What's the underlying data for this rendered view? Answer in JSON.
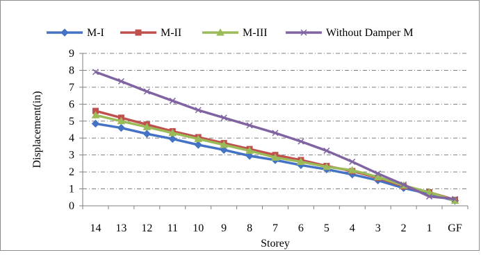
{
  "chart_data": {
    "type": "line",
    "title": "",
    "xlabel": "Storey",
    "ylabel": "Displacement(in)",
    "categories": [
      "14",
      "13",
      "12",
      "11",
      "10",
      "9",
      "8",
      "7",
      "6",
      "5",
      "4",
      "3",
      "2",
      "1",
      "GF"
    ],
    "ylim": [
      0,
      9
    ],
    "yticks": [
      0,
      1,
      2,
      3,
      4,
      5,
      6,
      7,
      8,
      9
    ],
    "grid": "horizontal dash-dot",
    "legend_position": "top",
    "series": [
      {
        "name": "M-I",
        "color": "#4472C4",
        "marker": "diamond",
        "values": [
          4.85,
          4.6,
          4.25,
          3.95,
          3.6,
          3.3,
          2.95,
          2.7,
          2.4,
          2.15,
          1.85,
          1.5,
          1.05,
          0.7,
          0.3
        ]
      },
      {
        "name": "M-II",
        "color": "#C0504D",
        "marker": "square",
        "values": [
          5.6,
          5.2,
          4.8,
          4.4,
          4.05,
          3.7,
          3.35,
          3.0,
          2.7,
          2.35,
          2.05,
          1.65,
          1.15,
          0.8,
          0.35
        ]
      },
      {
        "name": "M-III",
        "color": "#9BBB59",
        "marker": "triangle",
        "values": [
          5.35,
          5.0,
          4.65,
          4.3,
          3.95,
          3.6,
          3.25,
          2.85,
          2.6,
          2.3,
          2.1,
          1.7,
          1.2,
          0.8,
          0.3
        ]
      },
      {
        "name": "Without Damper M",
        "color": "#8064A2",
        "marker": "x",
        "values": [
          7.9,
          7.35,
          6.75,
          6.2,
          5.65,
          5.2,
          4.75,
          4.3,
          3.8,
          3.25,
          2.6,
          1.9,
          1.25,
          0.55,
          0.4
        ]
      }
    ]
  }
}
